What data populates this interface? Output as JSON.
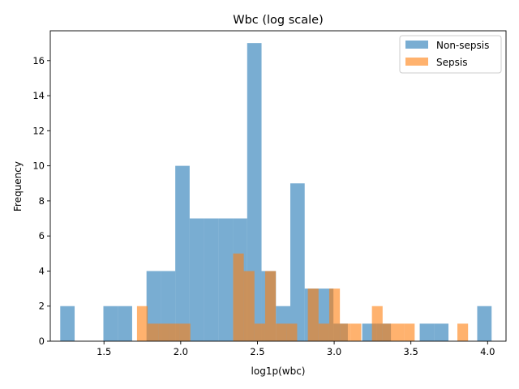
{
  "chart_data": {
    "type": "histogram",
    "title": "Wbc (log scale)",
    "xlabel": "log1p(wbc)",
    "ylabel": "Frequency",
    "xlim": [
      1.15,
      4.12
    ],
    "ylim": [
      0,
      17.7
    ],
    "x_ticks": [
      1.5,
      2.0,
      2.5,
      3.0,
      3.5,
      4.0
    ],
    "x_tick_labels": [
      "1.5",
      "2.0",
      "2.5",
      "3.0",
      "3.5",
      "4.0"
    ],
    "y_ticks": [
      0,
      2,
      4,
      6,
      8,
      10,
      12,
      14,
      16
    ],
    "y_tick_labels": [
      "0",
      "2",
      "4",
      "6",
      "8",
      "10",
      "12",
      "14",
      "16"
    ],
    "legend_position": "top-right",
    "grid": false,
    "series": [
      {
        "name": "Non-sepsis",
        "color": "#1f77b4",
        "opacity": 0.6,
        "bin_start": 1.215,
        "bin_width": 0.0937,
        "counts": [
          2,
          0,
          0,
          2,
          2,
          0,
          4,
          4,
          10,
          7,
          7,
          7,
          7,
          17,
          4,
          2,
          9,
          3,
          3,
          1,
          0,
          1,
          1,
          0,
          0,
          1,
          1,
          0,
          0,
          2
        ]
      },
      {
        "name": "Sepsis",
        "color": "#ff7f0e",
        "opacity": 0.6,
        "bin_start": 1.715,
        "bin_width": 0.0696,
        "counts": [
          2,
          1,
          1,
          1,
          1,
          0,
          0,
          0,
          0,
          5,
          4,
          1,
          4,
          1,
          1,
          0,
          3,
          1,
          3,
          1,
          1,
          0,
          2,
          1,
          1,
          1,
          0,
          0,
          0,
          0,
          1
        ]
      }
    ]
  }
}
